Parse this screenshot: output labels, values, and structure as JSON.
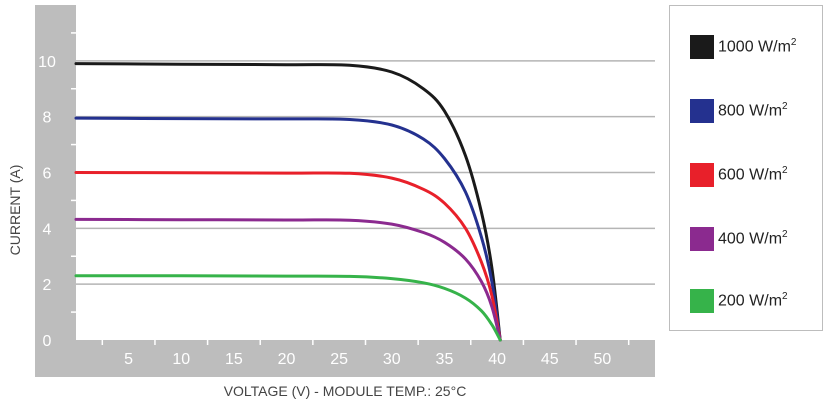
{
  "chart_data": {
    "type": "line",
    "title": "",
    "xlabel": "VOLTAGE (V) - MODULE TEMP.: 25°C",
    "ylabel": "CURRENT (A)",
    "xlim": [
      0,
      55
    ],
    "ylim": [
      0,
      12
    ],
    "x_ticks": [
      5,
      10,
      15,
      20,
      25,
      30,
      35,
      40,
      45,
      50
    ],
    "y_ticks": [
      0,
      2,
      4,
      6,
      8,
      10
    ],
    "grid": true,
    "legend_position": "right",
    "series": [
      {
        "name": "1000 W/m2",
        "unit_base": "1000 W/m",
        "unit_sup": "2",
        "color": "#1a1a1a",
        "x": [
          0,
          10,
          20,
          26,
          30,
          33,
          35,
          37,
          38.5,
          39.5,
          40.3
        ],
        "y": [
          9.9,
          9.88,
          9.86,
          9.84,
          9.6,
          9.0,
          8.2,
          6.6,
          4.6,
          2.6,
          0
        ]
      },
      {
        "name": "800 W/m2",
        "unit_base": "800 W/m",
        "unit_sup": "2",
        "color": "#24318f",
        "x": [
          0,
          10,
          20,
          26,
          30,
          33,
          35,
          37,
          38.5,
          39.5,
          40.3
        ],
        "y": [
          7.95,
          7.93,
          7.92,
          7.9,
          7.7,
          7.2,
          6.5,
          5.3,
          3.7,
          2.1,
          0
        ]
      },
      {
        "name": "600 W/m2",
        "unit_base": "600 W/m",
        "unit_sup": "2",
        "color": "#e8202a",
        "x": [
          0,
          10,
          20,
          26,
          30,
          33,
          35,
          37,
          38.5,
          39.5,
          40.3
        ],
        "y": [
          6.0,
          5.99,
          5.98,
          5.97,
          5.8,
          5.4,
          4.9,
          4.0,
          2.8,
          1.6,
          0
        ]
      },
      {
        "name": "400 W/m2",
        "unit_base": "400 W/m",
        "unit_sup": "2",
        "color": "#8b2a8f",
        "x": [
          0,
          10,
          20,
          26,
          30,
          33,
          35,
          37,
          38.5,
          39.5,
          40.3
        ],
        "y": [
          4.32,
          4.31,
          4.3,
          4.29,
          4.15,
          3.85,
          3.5,
          2.9,
          2.1,
          1.2,
          0
        ]
      },
      {
        "name": "200 W/m2",
        "unit_base": "200 W/m",
        "unit_sup": "2",
        "color": "#36b34a",
        "x": [
          0,
          10,
          20,
          26,
          30,
          33,
          35,
          37,
          38.5,
          39.5,
          40.3
        ],
        "y": [
          2.3,
          2.3,
          2.29,
          2.28,
          2.2,
          2.05,
          1.85,
          1.5,
          1.05,
          0.55,
          0
        ]
      }
    ]
  }
}
